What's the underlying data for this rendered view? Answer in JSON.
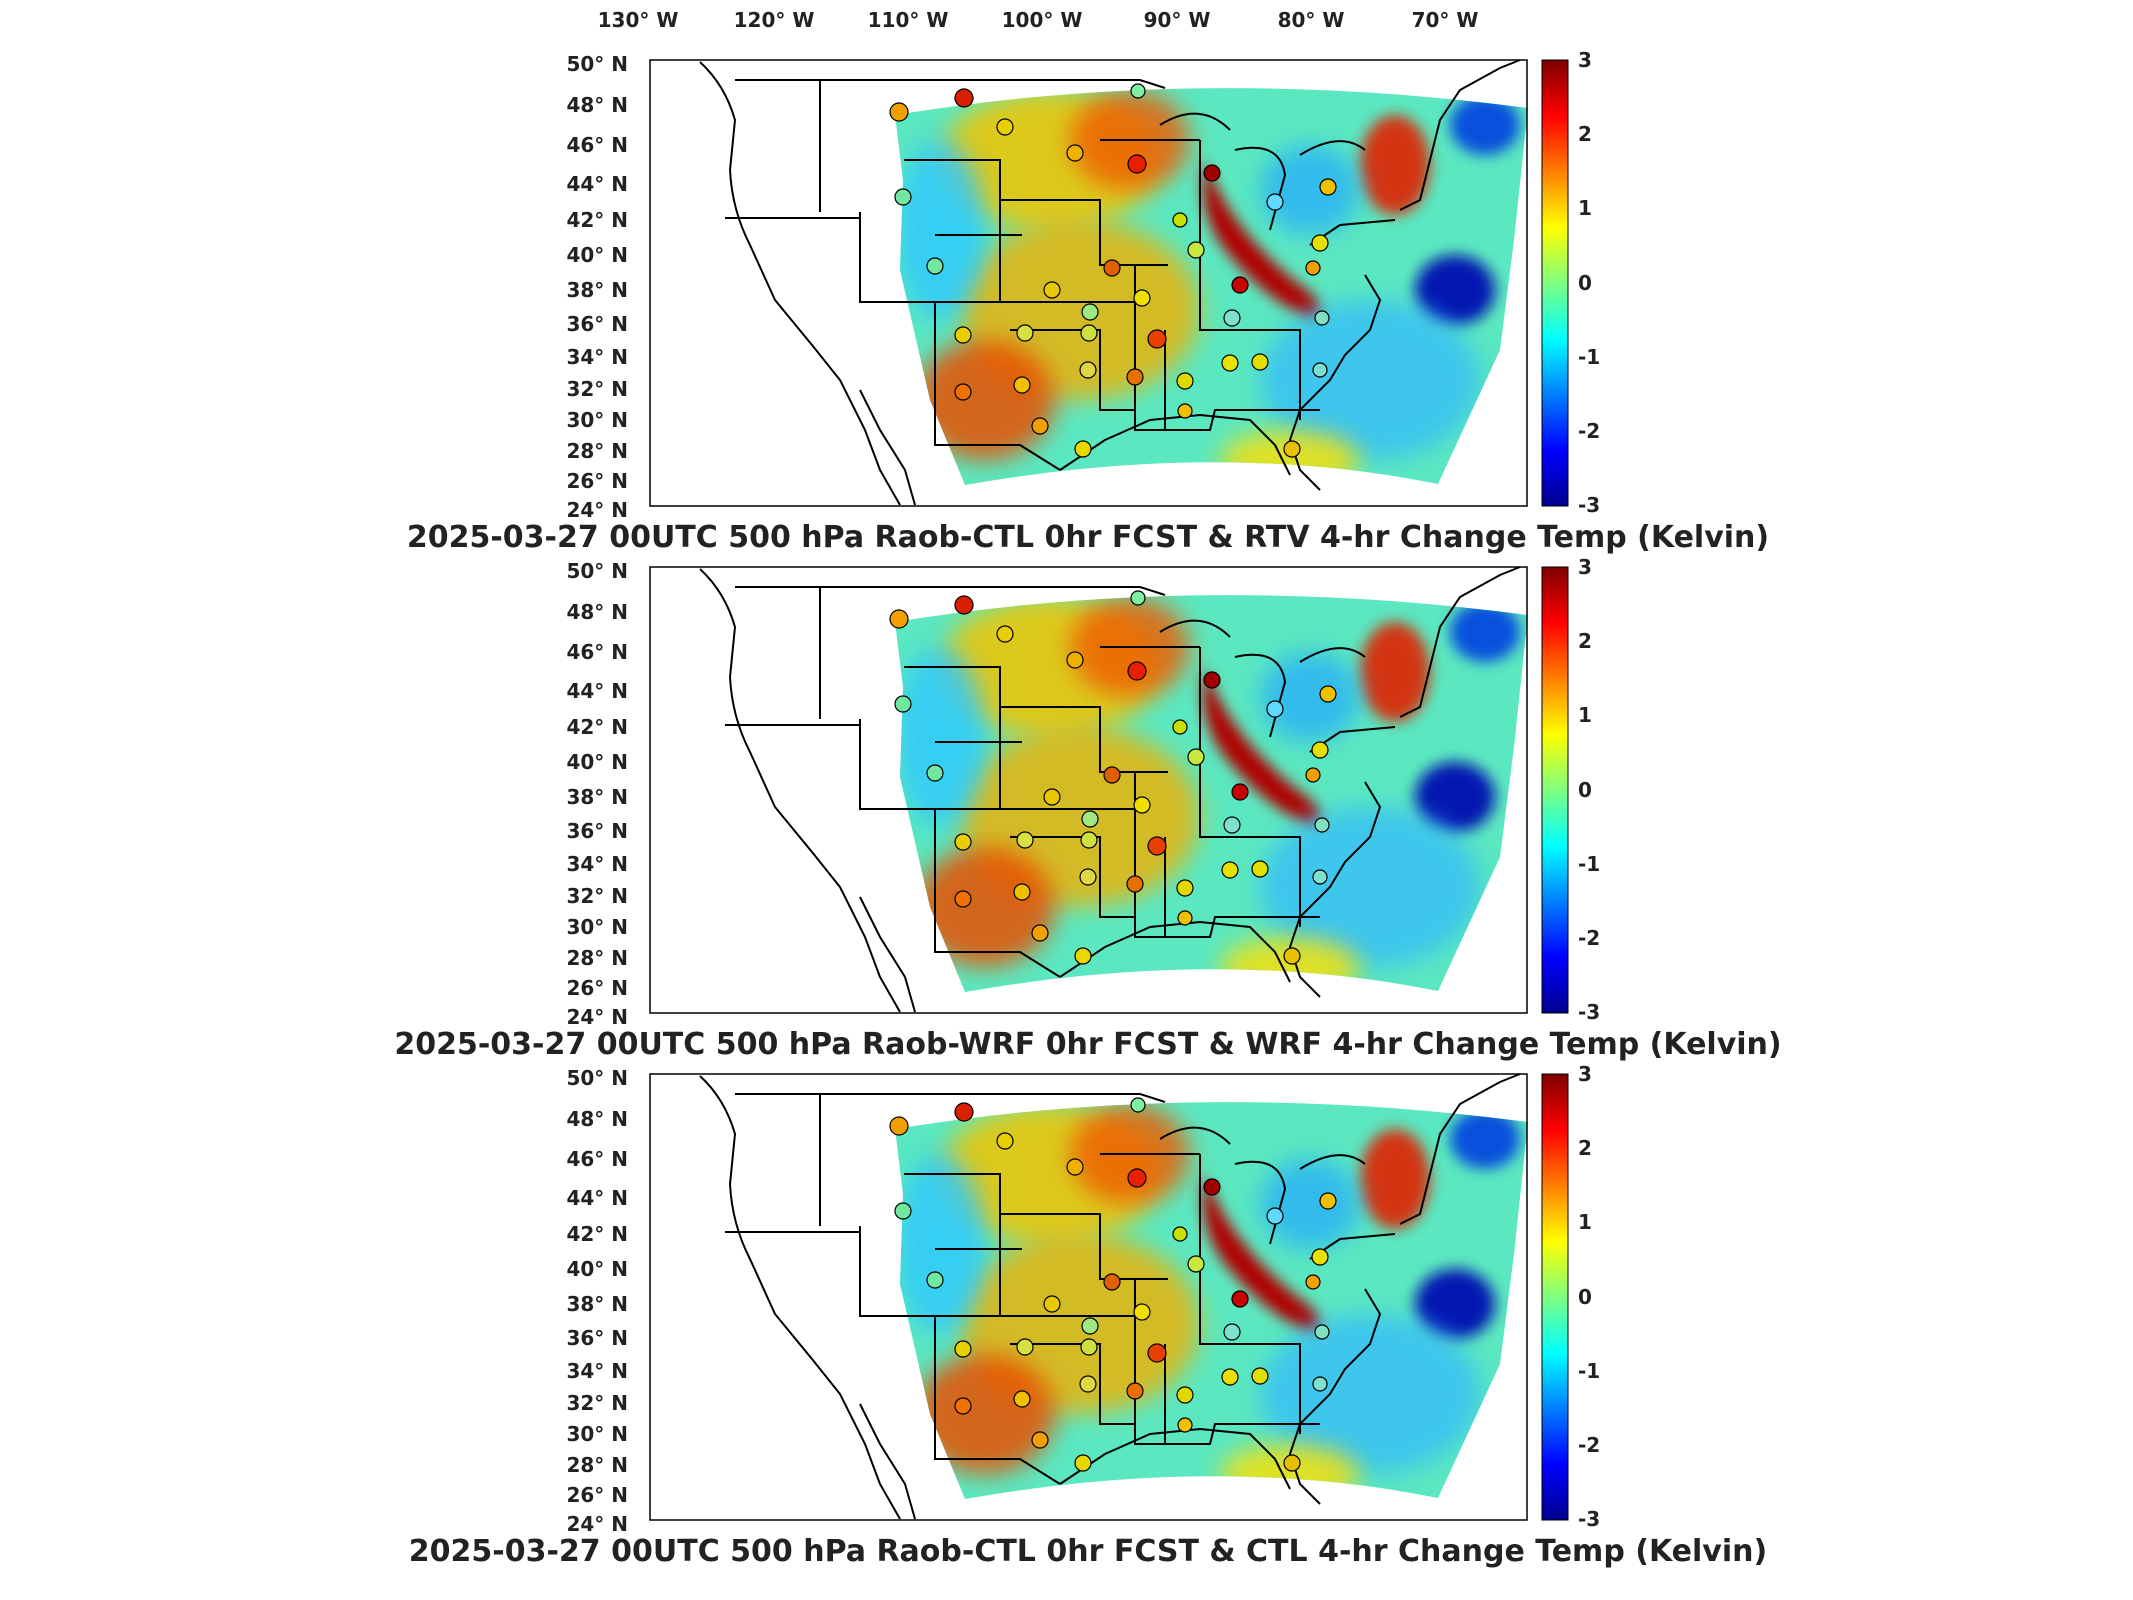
{
  "figure": {
    "longitude_labels": [
      "130° W",
      "120° W",
      "110° W",
      "100° W",
      "90° W",
      "80° W",
      "70° W"
    ],
    "latitude_labels": [
      "50° N",
      "48° N",
      "46° N",
      "44° N",
      "42° N",
      "40° N",
      "38° N",
      "36° N",
      "34° N",
      "32° N",
      "30° N",
      "28° N",
      "26° N",
      "24° N"
    ],
    "colorbar": {
      "range": [
        -3,
        3
      ],
      "ticks": [
        "3",
        "2",
        "1",
        "0",
        "-1",
        "-2",
        "-3"
      ],
      "colormap": "jet",
      "colors": [
        "#00008f",
        "#0000ff",
        "#007fff",
        "#00ffff",
        "#7fff7f",
        "#ffff00",
        "#ff7f00",
        "#ff0000",
        "#7f0000"
      ]
    },
    "colors": {
      "coastline": "#000000",
      "marker_outline": "#000000",
      "frame": "#000000",
      "background": "#ffffff"
    }
  },
  "panels": [
    {
      "title": "2025-03-27 00UTC 500 hPa Raob-CTL 0hr FCST & RTV 4-hr Change Temp (Kelvin)"
    },
    {
      "title": "2025-03-27 00UTC 500 hPa Raob-WRF 0hr FCST & WRF 4-hr Change Temp (Kelvin)"
    },
    {
      "title": "2025-03-27 00UTC 500 hPa Raob-CTL 0hr FCST & CTL 4-hr Change Temp (Kelvin)"
    }
  ]
}
